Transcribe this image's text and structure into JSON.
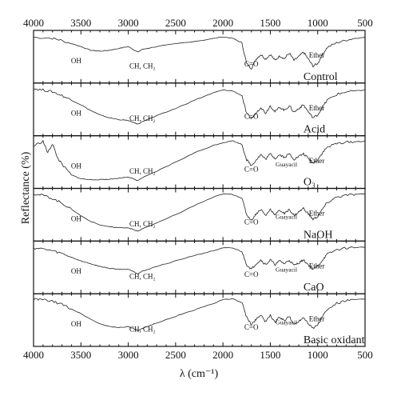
{
  "chart_data": {
    "type": "line",
    "title": "",
    "xlabel": "λ (cm⁻¹)",
    "ylabel": "Reflectance (%)",
    "xlim": [
      4000,
      500
    ],
    "x_reversed": true,
    "x_ticks": [
      4000,
      3500,
      3000,
      2500,
      2000,
      1500,
      1000,
      500
    ],
    "panels": [
      {
        "name": "Control",
        "annotations": [
          "OH",
          "CH, CH₂",
          "C=O",
          "Ether"
        ],
        "x": [
          4000,
          3800,
          3700,
          3500,
          3400,
          3300,
          3200,
          3100,
          3000,
          2950,
          2900,
          2850,
          2700,
          2500,
          2200,
          2000,
          1900,
          1800,
          1750,
          1700,
          1650,
          1600,
          1550,
          1500,
          1450,
          1400,
          1350,
          1300,
          1250,
          1200,
          1150,
          1100,
          1050,
          1000,
          950,
          900,
          800,
          700,
          600,
          500
        ],
        "y": [
          0.92,
          0.9,
          0.85,
          0.72,
          0.64,
          0.62,
          0.64,
          0.68,
          0.72,
          0.66,
          0.6,
          0.66,
          0.72,
          0.78,
          0.86,
          0.93,
          0.9,
          0.8,
          0.35,
          0.25,
          0.45,
          0.55,
          0.45,
          0.55,
          0.42,
          0.52,
          0.46,
          0.58,
          0.42,
          0.5,
          0.6,
          0.45,
          0.3,
          0.35,
          0.55,
          0.7,
          0.8,
          0.86,
          0.9,
          0.92
        ]
      },
      {
        "name": "Acid",
        "annotations": [
          "OH",
          "CH, CH₂",
          "C=O",
          "Ether"
        ],
        "x": [
          4000,
          3900,
          3800,
          3700,
          3600,
          3500,
          3400,
          3300,
          3200,
          3100,
          3000,
          2950,
          2900,
          2850,
          2700,
          2500,
          2300,
          2100,
          2000,
          1900,
          1800,
          1750,
          1700,
          1650,
          1600,
          1550,
          1500,
          1450,
          1400,
          1350,
          1300,
          1250,
          1200,
          1150,
          1100,
          1050,
          1000,
          950,
          900,
          800,
          700,
          600,
          500
        ],
        "y": [
          0.95,
          0.92,
          0.88,
          0.8,
          0.7,
          0.6,
          0.48,
          0.38,
          0.32,
          0.28,
          0.26,
          0.22,
          0.18,
          0.24,
          0.36,
          0.52,
          0.7,
          0.86,
          0.92,
          0.9,
          0.8,
          0.4,
          0.3,
          0.42,
          0.55,
          0.42,
          0.58,
          0.45,
          0.55,
          0.48,
          0.58,
          0.44,
          0.52,
          0.6,
          0.45,
          0.32,
          0.38,
          0.55,
          0.7,
          0.82,
          0.88,
          0.9,
          0.92
        ]
      },
      {
        "name": "O₃",
        "annotations": [
          "OH",
          "CH, CH₂",
          "C=O",
          "Guayacil",
          "Ether"
        ],
        "x": [
          4000,
          3900,
          3850,
          3800,
          3750,
          3700,
          3600,
          3500,
          3400,
          3300,
          3200,
          3100,
          3000,
          2950,
          2900,
          2850,
          2700,
          2500,
          2300,
          2100,
          2000,
          1900,
          1800,
          1750,
          1700,
          1650,
          1600,
          1550,
          1500,
          1450,
          1400,
          1350,
          1300,
          1250,
          1200,
          1150,
          1100,
          1050,
          1000,
          950,
          900,
          800,
          700,
          600,
          500
        ],
        "y": [
          0.85,
          0.95,
          0.7,
          0.9,
          0.6,
          0.45,
          0.22,
          0.14,
          0.12,
          0.12,
          0.13,
          0.15,
          0.18,
          0.14,
          0.1,
          0.16,
          0.3,
          0.5,
          0.7,
          0.86,
          0.92,
          0.96,
          0.88,
          0.55,
          0.42,
          0.55,
          0.66,
          0.56,
          0.68,
          0.58,
          0.66,
          0.6,
          0.68,
          0.56,
          0.62,
          0.68,
          0.58,
          0.48,
          0.55,
          0.7,
          0.82,
          0.9,
          0.93,
          0.94,
          0.95
        ]
      },
      {
        "name": "NaOH",
        "annotations": [
          "OH",
          "CH, CH₂",
          "C=O",
          "Guayacil",
          "Ether"
        ],
        "x": [
          4000,
          3900,
          3800,
          3700,
          3600,
          3500,
          3400,
          3300,
          3200,
          3100,
          3000,
          2950,
          2900,
          2850,
          2700,
          2500,
          2300,
          2100,
          2000,
          1900,
          1800,
          1750,
          1700,
          1650,
          1600,
          1550,
          1500,
          1450,
          1400,
          1350,
          1300,
          1250,
          1200,
          1150,
          1100,
          1050,
          1000,
          950,
          900,
          800,
          700,
          600,
          500
        ],
        "y": [
          0.95,
          0.92,
          0.85,
          0.75,
          0.62,
          0.48,
          0.36,
          0.28,
          0.24,
          0.22,
          0.22,
          0.18,
          0.14,
          0.2,
          0.32,
          0.5,
          0.7,
          0.88,
          0.95,
          0.94,
          0.86,
          0.5,
          0.38,
          0.52,
          0.62,
          0.48,
          0.62,
          0.5,
          0.6,
          0.52,
          0.62,
          0.48,
          0.56,
          0.64,
          0.52,
          0.4,
          0.46,
          0.62,
          0.76,
          0.88,
          0.92,
          0.94,
          0.95
        ]
      },
      {
        "name": "CaO",
        "annotations": [
          "OH",
          "CH, CH₂",
          "C=O",
          "Guayacil",
          "Ether"
        ],
        "x": [
          4000,
          3900,
          3800,
          3700,
          3600,
          3500,
          3400,
          3300,
          3200,
          3100,
          3000,
          2950,
          2900,
          2850,
          2700,
          2500,
          2300,
          2100,
          2000,
          1900,
          1800,
          1750,
          1700,
          1650,
          1600,
          1550,
          1500,
          1450,
          1400,
          1350,
          1300,
          1250,
          1200,
          1150,
          1100,
          1050,
          1000,
          950,
          900,
          800,
          700,
          600,
          500
        ],
        "y": [
          0.92,
          0.9,
          0.86,
          0.8,
          0.72,
          0.64,
          0.58,
          0.52,
          0.48,
          0.46,
          0.46,
          0.42,
          0.36,
          0.42,
          0.52,
          0.64,
          0.76,
          0.86,
          0.92,
          0.92,
          0.84,
          0.56,
          0.46,
          0.58,
          0.66,
          0.56,
          0.66,
          0.56,
          0.64,
          0.58,
          0.66,
          0.54,
          0.6,
          0.66,
          0.56,
          0.46,
          0.52,
          0.66,
          0.78,
          0.88,
          0.92,
          0.93,
          0.94
        ]
      },
      {
        "name": "Basic oxidant",
        "annotations": [
          "OH",
          "CH, CH₂",
          "C=O",
          "Guayacil",
          "Ether"
        ],
        "x": [
          4000,
          3900,
          3800,
          3700,
          3600,
          3500,
          3400,
          3300,
          3200,
          3100,
          3000,
          2950,
          2900,
          2850,
          2700,
          2500,
          2300,
          2100,
          2000,
          1900,
          1800,
          1750,
          1700,
          1650,
          1600,
          1550,
          1500,
          1450,
          1400,
          1350,
          1300,
          1250,
          1200,
          1150,
          1100,
          1050,
          1000,
          950,
          900,
          800,
          700,
          600,
          500
        ],
        "y": [
          0.95,
          0.94,
          0.9,
          0.84,
          0.74,
          0.64,
          0.52,
          0.42,
          0.36,
          0.34,
          0.36,
          0.32,
          0.26,
          0.32,
          0.44,
          0.58,
          0.72,
          0.86,
          0.94,
          0.96,
          0.88,
          0.56,
          0.4,
          0.52,
          0.62,
          0.46,
          0.6,
          0.46,
          0.56,
          0.48,
          0.58,
          0.4,
          0.48,
          0.56,
          0.44,
          0.32,
          0.4,
          0.58,
          0.72,
          0.86,
          0.92,
          0.94,
          0.96
        ]
      }
    ],
    "grid": false,
    "legend": "none"
  }
}
